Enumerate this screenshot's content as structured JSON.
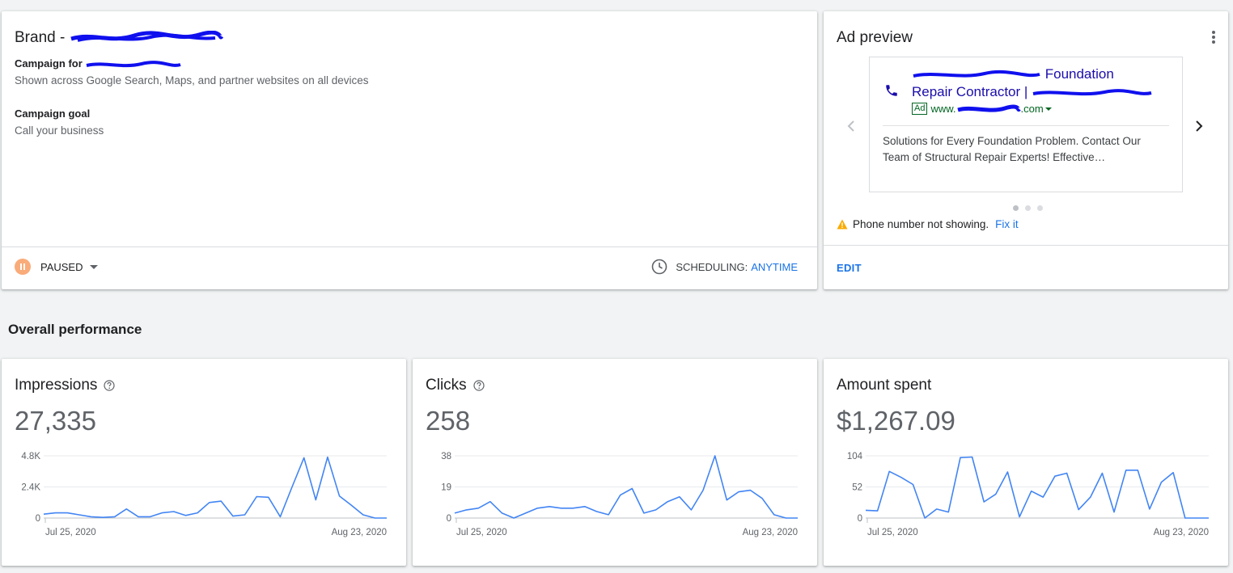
{
  "campaign": {
    "brand_prefix": "Brand -",
    "campaign_for_label": "Campaign for",
    "reach_text": "Shown across Google Search, Maps, and partner websites on all devices",
    "goal_label": "Campaign goal",
    "goal_value": "Call your business",
    "status": "PAUSED",
    "scheduling_label": "SCHEDULING:",
    "scheduling_value": "ANYTIME"
  },
  "ad_preview": {
    "title": "Ad preview",
    "headline_line1": "Foundation",
    "headline_line2": "Repair Contractor |",
    "ad_badge": "Ad",
    "url_prefix": "www.",
    "url_suffix": ".com",
    "description": "Solutions for Every Foundation Problem. Contact Our Team of Structural Repair Experts! Effective…",
    "warning": "Phone number not showing.",
    "fix_link": "Fix it",
    "edit_label": "EDIT",
    "carousel_total": 3,
    "carousel_active": 1
  },
  "overall_performance": {
    "title": "Overall performance"
  },
  "metrics": [
    {
      "title": "Impressions",
      "value": "27,335",
      "has_help": true
    },
    {
      "title": "Clicks",
      "value": "258",
      "has_help": true
    },
    {
      "title": "Amount spent",
      "value": "$1,267.09",
      "has_help": false
    }
  ],
  "colors": {
    "accent": "#1a73e8",
    "line": "#4285f4",
    "paused": "#f9ab79",
    "ad_green": "#006621",
    "ad_blue": "#1a0dab"
  },
  "chart_data": [
    {
      "type": "line",
      "title": "Impressions",
      "x_start_label": "Jul 25, 2020",
      "x_end_label": "Aug 23, 2020",
      "y_ticks": [
        "4.8K",
        "2.4K",
        "0"
      ],
      "ylim": [
        0,
        4800
      ],
      "values": [
        300,
        400,
        400,
        250,
        100,
        50,
        100,
        700,
        100,
        100,
        400,
        500,
        200,
        400,
        1200,
        1300,
        150,
        250,
        1650,
        1600,
        100,
        2400,
        4650,
        1400,
        4700,
        1700,
        1000,
        250,
        0,
        0
      ]
    },
    {
      "type": "line",
      "title": "Clicks",
      "x_start_label": "Jul 25, 2020",
      "x_end_label": "Aug 23, 2020",
      "y_ticks": [
        "38",
        "19",
        "0"
      ],
      "ylim": [
        0,
        38
      ],
      "values": [
        3,
        5,
        6,
        10,
        3,
        0,
        3,
        6,
        7,
        6,
        6,
        7,
        4,
        2,
        14,
        18,
        3,
        5,
        10,
        13,
        5,
        17,
        38,
        11,
        16,
        17,
        12,
        2,
        0,
        0
      ]
    },
    {
      "type": "line",
      "title": "Amount spent",
      "x_start_label": "Jul 25, 2020",
      "x_end_label": "Aug 23, 2020",
      "y_ticks": [
        "104",
        "52",
        "0"
      ],
      "ylim": [
        0,
        104
      ],
      "values": [
        13,
        12,
        78,
        68,
        56,
        0,
        15,
        10,
        101,
        102,
        27,
        40,
        77,
        2,
        45,
        35,
        70,
        75,
        14,
        35,
        75,
        10,
        80,
        80,
        15,
        60,
        76,
        0,
        0,
        0
      ]
    }
  ]
}
